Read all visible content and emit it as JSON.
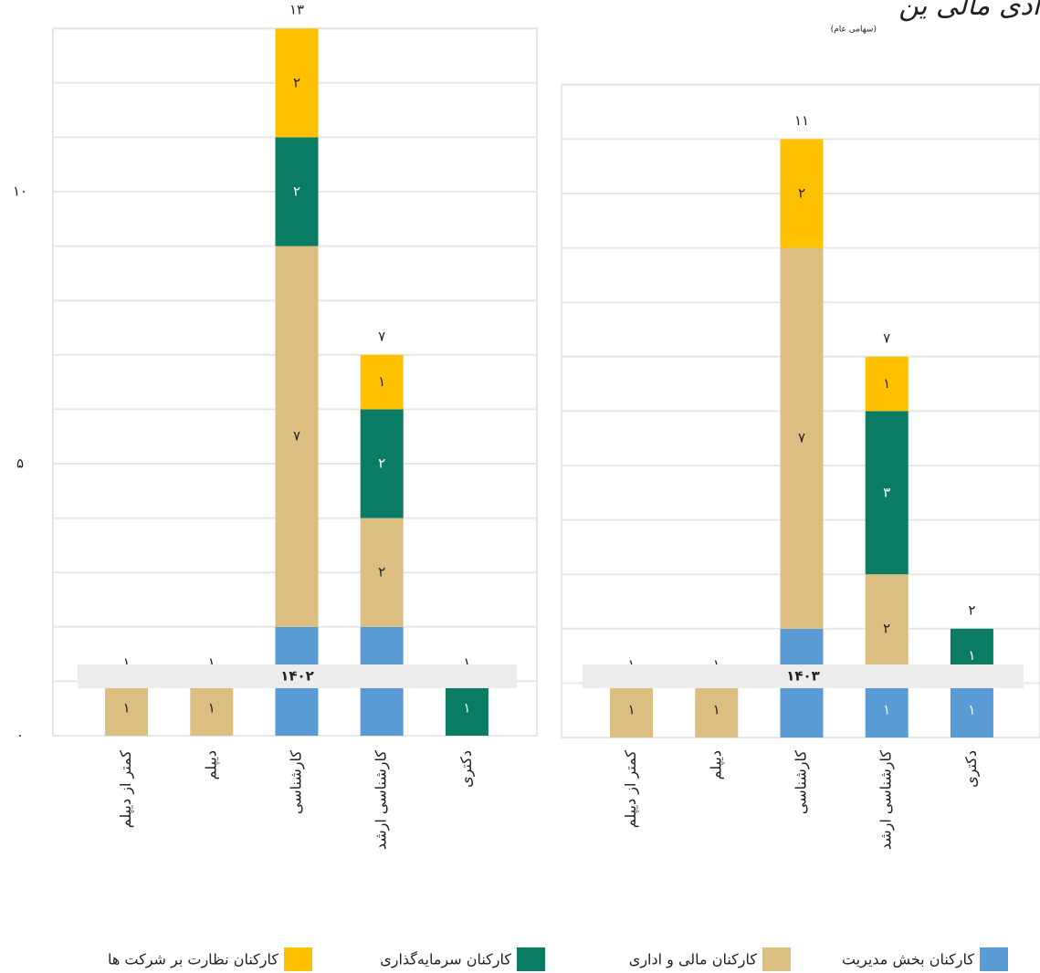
{
  "logo": {
    "name": "ادی مالی ین",
    "subtitle": "(سهامی عام)"
  },
  "legend_position": "bottom",
  "chart_data": [
    {
      "type": "stacked-bar",
      "facet": "۱۴۰۲",
      "categories": [
        "کمتر از دیپلم",
        "دیپلم",
        "کارشناسی",
        "کارشناسی ارشد",
        "دکتری"
      ],
      "series": [
        {
          "name": "کارکنان بخش مدیریت",
          "color": "#5b9bd5",
          "values": [
            null,
            null,
            2,
            2,
            null
          ],
          "value_labels": [
            null,
            null,
            "۲",
            "۲",
            null
          ]
        },
        {
          "name": "کارکنان مالی و اداری",
          "color": "#dcbe82",
          "values": [
            1,
            1,
            7,
            2,
            null
          ],
          "value_labels": [
            "۱",
            "۱",
            "۷",
            "۲",
            null
          ]
        },
        {
          "name": "کارکنان سرمایه‌گذاری",
          "color": "#0a7c64",
          "values": [
            null,
            null,
            2,
            2,
            1
          ],
          "value_labels": [
            null,
            null,
            "۲",
            "۲",
            "۱"
          ]
        },
        {
          "name": "کارکنان نظارت بر شرکت ها",
          "color": "#ffc000",
          "values": [
            null,
            null,
            2,
            1,
            null
          ],
          "value_labels": [
            null,
            null,
            "۲",
            "۱",
            null
          ]
        }
      ],
      "totals": [
        1,
        1,
        13,
        7,
        1
      ],
      "total_labels": [
        "۱",
        "۱",
        "۱۳",
        "۷",
        "۱"
      ],
      "ylim": [
        0,
        13
      ],
      "yticks": [
        {
          "value": 0,
          "label": "۰"
        },
        {
          "value": 5,
          "label": "۵"
        },
        {
          "value": 10,
          "label": "۱۰"
        }
      ],
      "gridlines": [
        0,
        1,
        2,
        3,
        4,
        5,
        6,
        7,
        8,
        9,
        10,
        11,
        12,
        13
      ]
    },
    {
      "type": "stacked-bar",
      "facet": "۱۴۰۳",
      "categories": [
        "کمتر از دیپلم",
        "دیپلم",
        "کارشناسی",
        "کارشناسی ارشد",
        "دکتری"
      ],
      "series": [
        {
          "name": "کارکنان بخش مدیریت",
          "color": "#5b9bd5",
          "values": [
            null,
            null,
            2,
            1,
            1
          ],
          "value_labels": [
            null,
            null,
            "۲",
            "۱",
            "۱"
          ]
        },
        {
          "name": "کارکنان مالی و اداری",
          "color": "#dcbe82",
          "values": [
            1,
            1,
            7,
            2,
            null
          ],
          "value_labels": [
            "۱",
            "۱",
            "۷",
            "۲",
            null
          ]
        },
        {
          "name": "کارکنان سرمایه‌گذاری",
          "color": "#0a7c64",
          "values": [
            null,
            null,
            null,
            3,
            1
          ],
          "value_labels": [
            null,
            null,
            null,
            "۳",
            "۱"
          ]
        },
        {
          "name": "کارکنان نظارت بر شرکت ها",
          "color": "#ffc000",
          "values": [
            null,
            null,
            2,
            1,
            null
          ],
          "value_labels": [
            null,
            null,
            "۲",
            "۱",
            null
          ]
        }
      ],
      "totals": [
        1,
        1,
        11,
        7,
        2
      ],
      "total_labels": [
        "۱",
        "۱",
        "۱۱",
        "۷",
        "۲"
      ],
      "ylim": [
        0,
        12
      ],
      "gridlines": [
        0,
        1,
        2,
        3,
        4,
        5,
        6,
        7,
        8,
        9,
        10,
        11,
        12
      ]
    }
  ]
}
